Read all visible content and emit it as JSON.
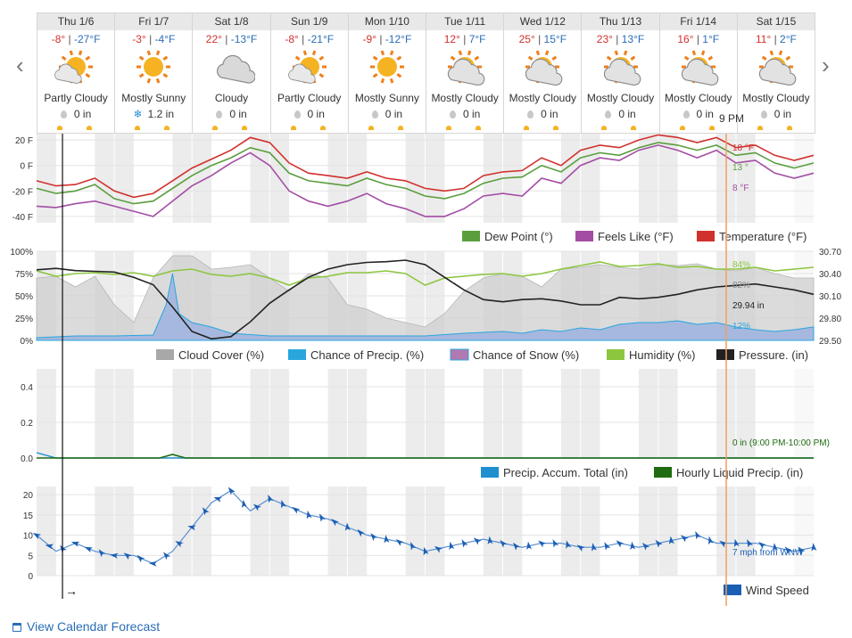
{
  "days": [
    {
      "name": "Thu 1/6",
      "hi": "-8°",
      "lo": "-27°F",
      "cond": "Partly Cloudy",
      "icon": "partly-cloudy-icon",
      "precip": "0 in",
      "ptype": "rain"
    },
    {
      "name": "Fri 1/7",
      "hi": "-3°",
      "lo": "-4°F",
      "cond": "Mostly Sunny",
      "icon": "sunny-icon",
      "precip": "1.2 in",
      "ptype": "snow"
    },
    {
      "name": "Sat 1/8",
      "hi": "22°",
      "lo": "-13°F",
      "cond": "Cloudy",
      "icon": "cloudy-icon",
      "precip": "0 in",
      "ptype": "rain"
    },
    {
      "name": "Sun 1/9",
      "hi": "-8°",
      "lo": "-21°F",
      "cond": "Partly Cloudy",
      "icon": "partly-cloudy-icon",
      "precip": "0 in",
      "ptype": "rain"
    },
    {
      "name": "Mon 1/10",
      "hi": "-9°",
      "lo": "-12°F",
      "cond": "Mostly Sunny",
      "icon": "sunny-icon",
      "precip": "0 in",
      "ptype": "rain"
    },
    {
      "name": "Tue 1/11",
      "hi": "12°",
      "lo": "7°F",
      "cond": "Mostly Cloudy",
      "icon": "mostly-cloudy-icon",
      "precip": "0 in",
      "ptype": "rain"
    },
    {
      "name": "Wed 1/12",
      "hi": "25°",
      "lo": "15°F",
      "cond": "Mostly Cloudy",
      "icon": "mostly-cloudy-icon",
      "precip": "0 in",
      "ptype": "rain"
    },
    {
      "name": "Thu 1/13",
      "hi": "23°",
      "lo": "13°F",
      "cond": "Mostly Cloudy",
      "icon": "mostly-cloudy-icon",
      "precip": "0 in",
      "ptype": "rain"
    },
    {
      "name": "Fri 1/14",
      "hi": "16°",
      "lo": "1°F",
      "cond": "Mostly Cloudy",
      "icon": "mostly-cloudy-icon",
      "precip": "0 in",
      "ptype": "rain"
    },
    {
      "name": "Sat 1/15",
      "hi": "11°",
      "lo": "2°F",
      "cond": "Mostly Cloudy",
      "icon": "mostly-cloudy-icon",
      "precip": "0 in",
      "ptype": "rain"
    }
  ],
  "nav": {
    "prev": "‹",
    "next": "›"
  },
  "cursor": {
    "label": "9 PM"
  },
  "calendar_link": "View Calendar Forecast",
  "colors": {
    "temperature": "#d0312d",
    "dew_point": "#5a9e3e",
    "feels_like": "#a44da4",
    "cloud": "#cfcfcf",
    "precip_chance": "#29a6de",
    "snow_chance": "#a6b8de",
    "humidity": "#8cc63f",
    "pressure": "#222222",
    "accum": "#1f8fd0",
    "liquid": "#1e6b10",
    "wind": "#1a5fb4",
    "cursor": "#f0a060"
  },
  "chart_data": [
    {
      "type": "line",
      "x_unit": "hours from Thu 1/6 00:00",
      "x_range": [
        0,
        240
      ],
      "ylim": [
        -45,
        25
      ],
      "yticks": [
        "20 F",
        "0 F",
        "-20 F",
        "-40 F"
      ],
      "ytick_values": [
        20,
        0,
        -20,
        -40
      ],
      "legend": [
        "Dew Point (°)",
        "Feels Like (°F)",
        "Temperature (°F)"
      ],
      "series": [
        {
          "name": "Temperature (°F)",
          "x": [
            0,
            6,
            12,
            18,
            24,
            30,
            36,
            42,
            48,
            54,
            60,
            66,
            72,
            78,
            84,
            90,
            96,
            102,
            108,
            114,
            120,
            126,
            132,
            138,
            144,
            150,
            156,
            162,
            168,
            174,
            180,
            186,
            192,
            198,
            204,
            210,
            216,
            222,
            228,
            234,
            240
          ],
          "values": [
            -12,
            -16,
            -15,
            -10,
            -20,
            -25,
            -22,
            -12,
            -2,
            5,
            12,
            22,
            18,
            2,
            -6,
            -8,
            -10,
            -5,
            -10,
            -12,
            -18,
            -20,
            -18,
            -8,
            -5,
            -4,
            6,
            0,
            12,
            16,
            14,
            20,
            24,
            22,
            18,
            22,
            14,
            16,
            8,
            4,
            8
          ]
        },
        {
          "name": "Dew Point (°)",
          "x": [
            0,
            6,
            12,
            18,
            24,
            30,
            36,
            42,
            48,
            54,
            60,
            66,
            72,
            78,
            84,
            90,
            96,
            102,
            108,
            114,
            120,
            126,
            132,
            138,
            144,
            150,
            156,
            162,
            168,
            174,
            180,
            186,
            192,
            198,
            204,
            210,
            216,
            222,
            228,
            234,
            240
          ],
          "values": [
            -18,
            -22,
            -20,
            -15,
            -26,
            -30,
            -28,
            -18,
            -8,
            0,
            6,
            14,
            10,
            -6,
            -12,
            -14,
            -16,
            -10,
            -15,
            -18,
            -24,
            -26,
            -22,
            -14,
            -10,
            -9,
            0,
            -5,
            6,
            10,
            8,
            14,
            18,
            16,
            12,
            16,
            8,
            10,
            2,
            -2,
            2
          ]
        },
        {
          "name": "Feels Like (°F)",
          "x": [
            0,
            6,
            12,
            18,
            24,
            30,
            36,
            42,
            48,
            54,
            60,
            66,
            72,
            78,
            84,
            90,
            96,
            102,
            108,
            114,
            120,
            126,
            132,
            138,
            144,
            150,
            156,
            162,
            168,
            174,
            180,
            186,
            192,
            198,
            204,
            210,
            216,
            222,
            228,
            234,
            240
          ],
          "values": [
            -32,
            -33,
            -30,
            -28,
            -32,
            -36,
            -40,
            -28,
            -16,
            -8,
            2,
            10,
            0,
            -20,
            -28,
            -32,
            -28,
            -22,
            -30,
            -34,
            -40,
            -40,
            -34,
            -24,
            -22,
            -24,
            -10,
            -14,
            0,
            6,
            4,
            12,
            16,
            12,
            6,
            12,
            2,
            4,
            -6,
            -10,
            -6
          ]
        }
      ],
      "cursor_readouts": [
        "18 °F",
        "13 °",
        "8 °F"
      ]
    },
    {
      "type": "area",
      "x_range": [
        0,
        240
      ],
      "ylim": [
        0,
        100
      ],
      "yticks": [
        "100%",
        "75%",
        "50%",
        "25%",
        "0%"
      ],
      "ytick_values": [
        100,
        75,
        50,
        25,
        0
      ],
      "y2ticks": [
        "30.70",
        "30.40",
        "30.10",
        "29.80",
        "29.50"
      ],
      "y2tick_values": [
        30.7,
        30.4,
        30.1,
        29.8,
        29.5
      ],
      "legend": [
        "Cloud Cover (%)",
        "Chance of Precip. (%)",
        "Chance of Snow (%)",
        "Humidity (%)",
        "Pressure. (in)"
      ],
      "series": [
        {
          "name": "Cloud Cover (%)",
          "x": [
            0,
            6,
            12,
            18,
            24,
            30,
            36,
            42,
            48,
            54,
            60,
            66,
            72,
            78,
            84,
            90,
            96,
            102,
            108,
            114,
            120,
            126,
            132,
            138,
            144,
            150,
            156,
            162,
            168,
            174,
            180,
            186,
            192,
            198,
            204,
            210,
            216,
            222,
            228,
            234,
            240
          ],
          "values": [
            70,
            72,
            60,
            72,
            40,
            20,
            70,
            95,
            95,
            80,
            82,
            85,
            70,
            55,
            75,
            70,
            40,
            35,
            25,
            20,
            15,
            30,
            55,
            70,
            75,
            72,
            60,
            80,
            82,
            85,
            82,
            80,
            85,
            84,
            86,
            80,
            78,
            82,
            75,
            70,
            70
          ]
        },
        {
          "name": "Humidity (%)",
          "x": [
            0,
            6,
            12,
            18,
            24,
            30,
            36,
            42,
            48,
            54,
            60,
            66,
            72,
            78,
            84,
            90,
            96,
            102,
            108,
            114,
            120,
            126,
            132,
            138,
            144,
            150,
            156,
            162,
            168,
            174,
            180,
            186,
            192,
            198,
            204,
            210,
            216,
            222,
            228,
            234,
            240
          ],
          "values": [
            78,
            72,
            75,
            76,
            74,
            76,
            72,
            78,
            80,
            74,
            72,
            75,
            70,
            62,
            70,
            72,
            76,
            76,
            78,
            75,
            62,
            70,
            72,
            74,
            75,
            72,
            75,
            80,
            84,
            88,
            83,
            84,
            86,
            82,
            83,
            80,
            80,
            82,
            78,
            80,
            82
          ]
        },
        {
          "name": "Chance of Precip. (%)",
          "x": [
            0,
            12,
            24,
            36,
            40,
            42,
            44,
            48,
            54,
            60,
            72,
            84,
            96,
            108,
            120,
            132,
            144,
            150,
            156,
            162,
            168,
            174,
            180,
            186,
            192,
            198,
            204,
            210,
            216,
            222,
            228,
            234,
            240
          ],
          "values": [
            3,
            5,
            5,
            6,
            40,
            75,
            30,
            20,
            15,
            8,
            5,
            5,
            5,
            5,
            5,
            8,
            10,
            8,
            12,
            10,
            14,
            12,
            18,
            20,
            20,
            22,
            18,
            20,
            15,
            12,
            10,
            12,
            15
          ]
        },
        {
          "name": "Pressure. (in)",
          "x": [
            0,
            6,
            12,
            18,
            24,
            30,
            36,
            42,
            48,
            54,
            60,
            66,
            72,
            78,
            84,
            90,
            96,
            102,
            108,
            114,
            120,
            126,
            132,
            138,
            144,
            150,
            156,
            162,
            168,
            174,
            180,
            186,
            192,
            198,
            204,
            210,
            216,
            222,
            228,
            234,
            240
          ],
          "values": [
            30.45,
            30.47,
            30.44,
            30.43,
            30.42,
            30.35,
            30.25,
            29.95,
            29.62,
            29.52,
            29.55,
            29.75,
            30.0,
            30.18,
            30.35,
            30.46,
            30.52,
            30.55,
            30.56,
            30.58,
            30.52,
            30.35,
            30.18,
            30.05,
            30.02,
            30.05,
            30.06,
            30.03,
            29.98,
            29.98,
            30.08,
            30.06,
            30.08,
            30.12,
            30.18,
            30.22,
            30.24,
            30.26,
            30.22,
            30.18,
            30.12
          ]
        }
      ],
      "cursor_readouts": [
        "84%",
        "82%",
        "29.94 in",
        "12%"
      ]
    },
    {
      "type": "line",
      "x_range": [
        0,
        240
      ],
      "ylim": [
        0,
        0.5
      ],
      "yticks": [
        "0.4",
        "0.2",
        "0.0"
      ],
      "ytick_values": [
        0.4,
        0.2,
        0.0
      ],
      "legend": [
        "Precip. Accum. Total (in)",
        "Hourly Liquid Precip. (in)"
      ],
      "series": [
        {
          "name": "Precip. Accum. Total (in)",
          "x": [
            0,
            6,
            240
          ],
          "values": [
            0.03,
            0,
            0
          ]
        },
        {
          "name": "Hourly Liquid Precip. (in)",
          "x": [
            0,
            38,
            40,
            42,
            44,
            46,
            240
          ],
          "values": [
            0,
            0,
            0.01,
            0.02,
            0.01,
            0,
            0
          ]
        }
      ],
      "cursor_readouts": [
        "0 in (9:00 PM-10:00 PM)"
      ]
    },
    {
      "type": "line",
      "x_range": [
        0,
        240
      ],
      "ylim": [
        0,
        22
      ],
      "yticks": [
        "20",
        "15",
        "10",
        "5",
        "0"
      ],
      "ytick_values": [
        20,
        15,
        10,
        5,
        0
      ],
      "legend": [
        "Wind Speed"
      ],
      "series": [
        {
          "name": "Wind Speed",
          "x": [
            0,
            6,
            12,
            18,
            24,
            30,
            36,
            42,
            48,
            54,
            60,
            66,
            72,
            78,
            84,
            90,
            96,
            102,
            108,
            114,
            120,
            126,
            132,
            138,
            144,
            150,
            156,
            162,
            168,
            174,
            180,
            186,
            192,
            198,
            204,
            210,
            216,
            222,
            228,
            234,
            240
          ],
          "values": [
            10,
            6,
            8,
            6,
            5,
            5,
            3,
            6,
            12,
            18,
            21,
            16,
            19,
            17,
            15,
            14,
            12,
            10,
            9,
            8,
            6,
            7,
            8,
            9,
            8,
            7,
            8,
            8,
            7,
            7,
            8,
            7,
            8,
            9,
            10,
            8,
            8,
            8,
            7,
            6,
            7
          ]
        }
      ],
      "cursor_readouts": [
        "7 mph from WNW"
      ]
    }
  ]
}
